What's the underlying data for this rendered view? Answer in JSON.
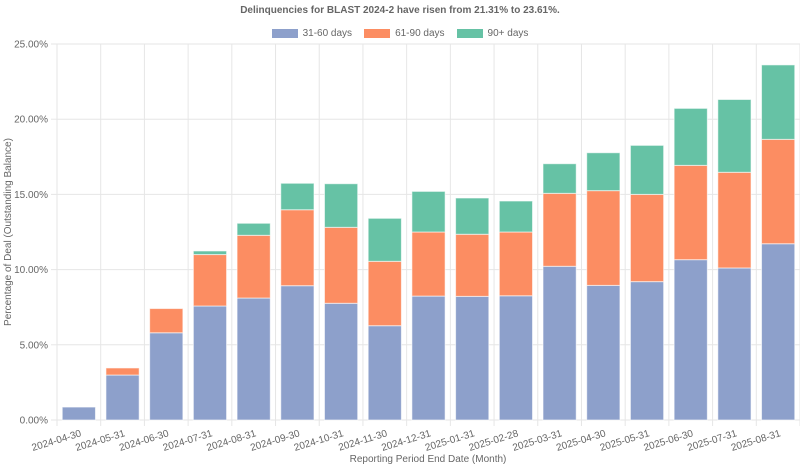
{
  "chart_data": {
    "type": "bar",
    "stacked": true,
    "title": "Delinquencies for BLAST 2024-2 have risen from 21.31% to 23.61%.",
    "xlabel": "Reporting Period End Date (Month)",
    "ylabel": "Percentage of Deal (Outstanding Balance)",
    "ylim": [
      0,
      25
    ],
    "yticks": [
      "0.00%",
      "5.00%",
      "10.00%",
      "15.00%",
      "20.00%",
      "25.00%"
    ],
    "ytick_values": [
      0,
      5,
      10,
      15,
      20,
      25
    ],
    "grid": true,
    "legend_position": "top-center",
    "categories": [
      "2024-04-30",
      "2024-05-31",
      "2024-06-30",
      "2024-07-31",
      "2024-08-31",
      "2024-09-30",
      "2024-10-31",
      "2024-11-30",
      "2024-12-31",
      "2025-01-31",
      "2025-02-28",
      "2025-03-31",
      "2025-04-30",
      "2025-05-31",
      "2025-06-30",
      "2025-07-31",
      "2025-08-31"
    ],
    "series": [
      {
        "name": "31-60 days",
        "color": "#8da0cb",
        "values": [
          0.86,
          2.99,
          5.8,
          7.58,
          8.11,
          8.93,
          7.76,
          6.27,
          8.24,
          8.22,
          8.26,
          10.22,
          8.95,
          9.2,
          10.66,
          10.11,
          11.72
        ]
      },
      {
        "name": "61-90 days",
        "color": "#fc8d62",
        "values": [
          0.0,
          0.47,
          1.61,
          3.42,
          4.17,
          5.05,
          5.05,
          4.28,
          4.26,
          4.13,
          4.24,
          4.85,
          6.3,
          5.8,
          6.27,
          6.36,
          6.94
        ]
      },
      {
        "name": "90+ days",
        "color": "#66c2a5",
        "values": [
          0.0,
          0.0,
          0.0,
          0.24,
          0.8,
          1.76,
          2.9,
          2.86,
          2.7,
          2.41,
          2.06,
          1.97,
          2.52,
          3.26,
          3.79,
          4.84,
          4.95
        ]
      }
    ]
  }
}
